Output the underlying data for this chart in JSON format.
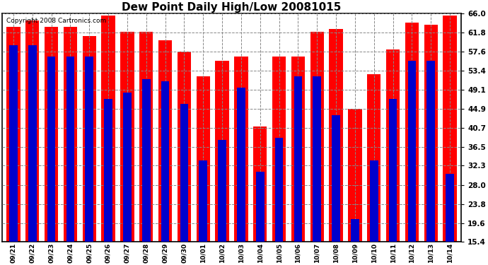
{
  "title": "Dew Point Daily High/Low 20081015",
  "copyright": "Copyright 2008 Cartronics.com",
  "dates": [
    "09/21",
    "09/22",
    "09/23",
    "09/24",
    "09/25",
    "09/26",
    "09/27",
    "09/28",
    "09/29",
    "09/30",
    "10/01",
    "10/02",
    "10/03",
    "10/04",
    "10/05",
    "10/06",
    "10/07",
    "10/08",
    "10/09",
    "10/10",
    "10/11",
    "10/12",
    "10/13",
    "10/14"
  ],
  "high_values": [
    63.0,
    64.5,
    63.0,
    63.0,
    61.0,
    65.5,
    62.0,
    62.0,
    60.0,
    57.5,
    52.0,
    55.5,
    56.5,
    41.0,
    56.5,
    56.5,
    62.0,
    62.5,
    44.9,
    52.5,
    58.0,
    64.0,
    63.5,
    65.5
  ],
  "low_values": [
    59.0,
    59.0,
    56.5,
    56.5,
    56.5,
    47.0,
    48.5,
    51.5,
    51.0,
    46.0,
    33.5,
    38.0,
    49.5,
    31.0,
    38.5,
    52.0,
    52.0,
    43.5,
    20.5,
    33.5,
    47.0,
    55.5,
    55.5,
    30.5
  ],
  "high_color": "#ff0000",
  "low_color": "#0000cc",
  "bg_color": "#ffffff",
  "plot_bg_color": "#ffffff",
  "grid_color": "#888888",
  "ylim_min": 15.4,
  "ylim_max": 66.0,
  "yticks": [
    15.4,
    19.6,
    23.8,
    28.0,
    32.3,
    36.5,
    40.7,
    44.9,
    49.1,
    53.4,
    57.6,
    61.8,
    66.0
  ]
}
